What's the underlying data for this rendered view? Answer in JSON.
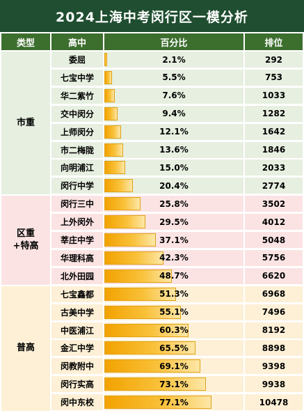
{
  "title": "2024上海中考闵行区一模分析",
  "headers": [
    "类型",
    "高中",
    "百分比",
    "排位"
  ],
  "groups": [
    {
      "label_lines": [
        "市重"
      ],
      "start": 0,
      "count": 8,
      "bg": "#e6efe0"
    },
    {
      "label_lines": [
        "区重",
        "+特高"
      ],
      "start": 8,
      "count": 5,
      "bg": "#fbe3e3"
    },
    {
      "label_lines": [
        "普高"
      ],
      "start": 13,
      "count": 7,
      "bg": "#fdf0d6"
    }
  ],
  "chart_data": {
    "type": "table",
    "columns": [
      "类型",
      "高中",
      "百分比",
      "排位"
    ],
    "rows": [
      {
        "school": "委屈",
        "percent": 2.1,
        "percent_label": "2.1%",
        "rank": "292"
      },
      {
        "school": "七宝中学",
        "percent": 5.5,
        "percent_label": "5.5%",
        "rank": "753"
      },
      {
        "school": "华二紫竹",
        "percent": 7.6,
        "percent_label": "7.6%",
        "rank": "1033"
      },
      {
        "school": "交中闵分",
        "percent": 9.4,
        "percent_label": "9.4%",
        "rank": "1282"
      },
      {
        "school": "上师闵分",
        "percent": 12.1,
        "percent_label": "12.1%",
        "rank": "1642"
      },
      {
        "school": "市二梅陇",
        "percent": 13.6,
        "percent_label": "13.6%",
        "rank": "1846"
      },
      {
        "school": "向明浦江",
        "percent": 15.0,
        "percent_label": "15.0%",
        "rank": "2033"
      },
      {
        "school": "闵行中学",
        "percent": 20.4,
        "percent_label": "20.4%",
        "rank": "2774"
      },
      {
        "school": "闵行三中",
        "percent": 25.8,
        "percent_label": "25.8%",
        "rank": "3502"
      },
      {
        "school": "上外闵外",
        "percent": 29.5,
        "percent_label": "29.5%",
        "rank": "4012"
      },
      {
        "school": "莘庄中学",
        "percent": 37.1,
        "percent_label": "37.1%",
        "rank": "5048"
      },
      {
        "school": "华理科高",
        "percent": 42.3,
        "percent_label": "42.3%",
        "rank": "5756"
      },
      {
        "school": "北外田园",
        "percent": 48.7,
        "percent_label": "48.7%",
        "rank": "6620"
      },
      {
        "school": "七宝鑫都",
        "percent": 51.3,
        "percent_label": "51.3%",
        "rank": "6968"
      },
      {
        "school": "古美中学",
        "percent": 55.1,
        "percent_label": "55.1%",
        "rank": "7496"
      },
      {
        "school": "中医浦江",
        "percent": 60.3,
        "percent_label": "60.3%",
        "rank": "8192"
      },
      {
        "school": "金汇中学",
        "percent": 65.5,
        "percent_label": "65.5%",
        "rank": "8898"
      },
      {
        "school": "闵教附中",
        "percent": 69.1,
        "percent_label": "69.1%",
        "rank": "9398"
      },
      {
        "school": "闵行实高",
        "percent": 73.1,
        "percent_label": "73.1%",
        "rank": "9938"
      },
      {
        "school": "闵中东校",
        "percent": 77.1,
        "percent_label": "77.1%",
        "rank": "10478"
      }
    ],
    "bar_scale_max": 100
  },
  "colors": {
    "title_bg": "#1f4e30",
    "header_bg": "#3c6e2e",
    "bar": "#f5a800",
    "row_green": "#e6efe0",
    "row_pink": "#fbe3e3",
    "row_yellow": "#fdf0d6"
  }
}
